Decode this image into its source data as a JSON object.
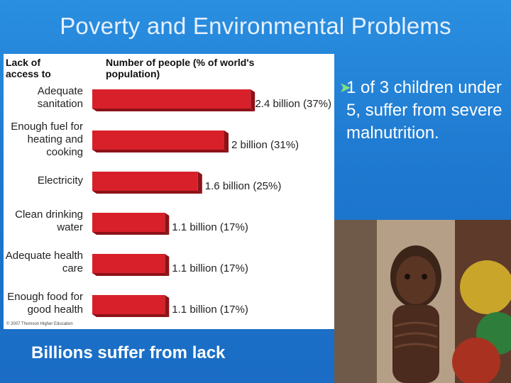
{
  "slide": {
    "title": "Poverty and Environmental Problems",
    "caption": "Billions suffer from lack",
    "bullet": "1 of 3 children under 5, suffer from severe malnutrition."
  },
  "colors": {
    "bar": "#d8202a",
    "bar_side": "#8c1218",
    "bullet_arrow": "#7fe07f"
  },
  "chart_data": {
    "type": "bar",
    "orientation": "horizontal",
    "category_header": "Lack of access to",
    "value_header": "Number of people (% of world's population)",
    "categories": [
      "Adequate sanitation",
      "Enough fuel for heating and cooking",
      "Electricity",
      "Clean drinking water",
      "Adequate health care",
      "Enough food for good health"
    ],
    "values": [
      2.4,
      2.0,
      1.6,
      1.1,
      1.1,
      1.1
    ],
    "value_units": "billion",
    "percent": [
      37,
      31,
      25,
      17,
      17,
      17
    ],
    "data_labels": [
      "2.4 billion (37%)",
      "2 billion (31%)",
      "1.6 billion (25%)",
      "1.1 billion (17%)",
      "1.1 billion (17%)",
      "1.1 billion (17%)"
    ],
    "copyright": "© 2007 Thomson Higher Education"
  }
}
